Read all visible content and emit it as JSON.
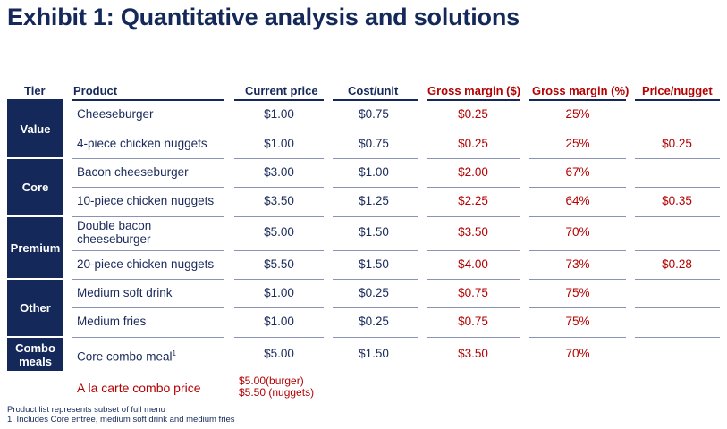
{
  "title": "Exhibit 1: Quantitative analysis and solutions",
  "headers": {
    "tier": "Tier",
    "product": "Product",
    "current_price": "Current price",
    "cost_unit": "Cost/unit",
    "gross_margin_usd": "Gross margin ($)",
    "gross_margin_pct": "Gross margin (%)",
    "price_nugget": "Price/nugget"
  },
  "tiers": [
    "Value",
    "Core",
    "Premium",
    "Other",
    "Combo meals"
  ],
  "rows": [
    {
      "product": "Cheeseburger",
      "price": "$1.00",
      "cost": "$0.75",
      "gm": "$0.25",
      "gmp": "25%",
      "ppn": ""
    },
    {
      "product": "4-piece chicken nuggets",
      "price": "$1.00",
      "cost": "$0.75",
      "gm": "$0.25",
      "gmp": "25%",
      "ppn": "$0.25"
    },
    {
      "product": "Bacon cheeseburger",
      "price": "$3.00",
      "cost": "$1.00",
      "gm": "$2.00",
      "gmp": "67%",
      "ppn": ""
    },
    {
      "product": "10-piece chicken nuggets",
      "price": "$3.50",
      "cost": "$1.25",
      "gm": "$2.25",
      "gmp": "64%",
      "ppn": "$0.35"
    },
    {
      "product": "Double bacon cheeseburger",
      "price": "$5.00",
      "cost": "$1.50",
      "gm": "$3.50",
      "gmp": "70%",
      "ppn": ""
    },
    {
      "product": "20-piece chicken nuggets",
      "price": "$5.50",
      "cost": "$1.50",
      "gm": "$4.00",
      "gmp": "73%",
      "ppn": "$0.28"
    },
    {
      "product": "Medium soft drink",
      "price": "$1.00",
      "cost": "$0.25",
      "gm": "$0.75",
      "gmp": "75%",
      "ppn": ""
    },
    {
      "product": "Medium fries",
      "price": "$1.00",
      "cost": "$0.25",
      "gm": "$0.75",
      "gmp": "75%",
      "ppn": ""
    },
    {
      "product": "Core combo meal",
      "product_sup": "1",
      "price": "$5.00",
      "cost": "$1.50",
      "gm": "$3.50",
      "gmp": "70%",
      "ppn": ""
    }
  ],
  "a_la_carte": {
    "label": "A la carte combo price",
    "burger": "$5.00(burger)",
    "nuggets": "$5.50 (nuggets)"
  },
  "footnotes": {
    "note": "Product list represents subset of full menu",
    "fn1": "1. Includes Core entree, medium soft drink and medium fries"
  },
  "colors": {
    "navy": "#14285a",
    "red": "#b30000"
  }
}
